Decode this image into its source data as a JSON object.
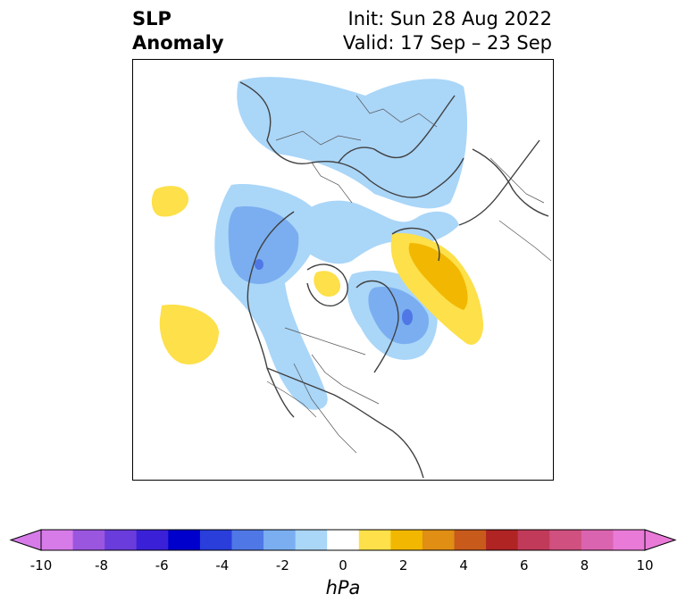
{
  "title": {
    "left_line1": "SLP",
    "left_line2": "Anomaly",
    "right_line1": "Init: Sun 28 Aug 2022",
    "right_line2": "Valid: 17 Sep – 23 Sep"
  },
  "colorbar": {
    "label": "hPa",
    "ticks": [
      "-10",
      "-8",
      "-6",
      "-4",
      "-2",
      "0",
      "2",
      "4",
      "6",
      "8",
      "10"
    ],
    "colors": [
      "#d77be9",
      "#9b56e0",
      "#6a3cdb",
      "#3a20d6",
      "#0000cc",
      "#2a3edb",
      "#4f78e6",
      "#7aaef0",
      "#aad6f8",
      "#ffffff",
      "#fde04a",
      "#f2b700",
      "#e08e14",
      "#c85a1c",
      "#b02424",
      "#c23a5a",
      "#d05080",
      "#db64b0",
      "#e97ad8"
    ],
    "under_color": "#d77be9",
    "over_color": "#e97ad8"
  },
  "map": {
    "projection": "north-polar-stereographic",
    "features": {
      "positive_anomalies": [
        "Scandinavia / Barents region (yellow to orange)",
        "North Pacific (yellow)",
        "Central Arctic (yellow)",
        "Northern Asia (yellow)"
      ],
      "negative_anomalies": [
        "Greenland / Baffin region (blue)",
        "Western Europe / North Atlantic (blue)",
        "Siberia / Eurasia (light blue)",
        "Alaska / Western Canada (light blue)"
      ]
    }
  }
}
